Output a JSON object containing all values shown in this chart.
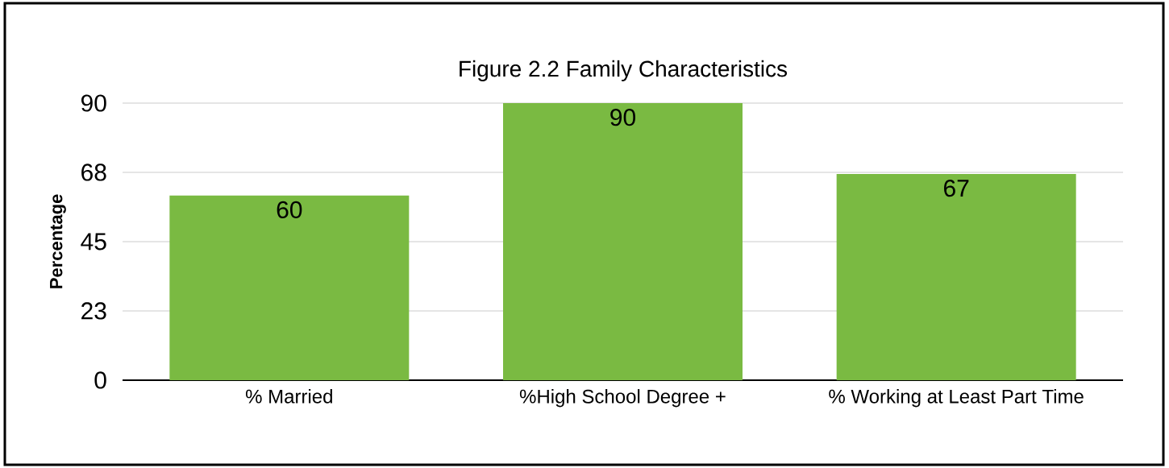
{
  "chart_data": {
    "type": "bar",
    "title": "Figure 2.2 Family Characteristics",
    "ylabel": "Percentage",
    "categories": [
      "% Married",
      "%High School Degree +",
      "% Working at Least Part Time"
    ],
    "values": [
      60,
      90,
      67
    ],
    "color": "#7aba42",
    "ylim": [
      0,
      90
    ],
    "yticks": [
      0,
      {
        "value": 22.5,
        "label": "23"
      },
      45,
      {
        "value": 67.5,
        "label": "68"
      },
      90
    ],
    "grid": "y",
    "data_labels": true
  }
}
